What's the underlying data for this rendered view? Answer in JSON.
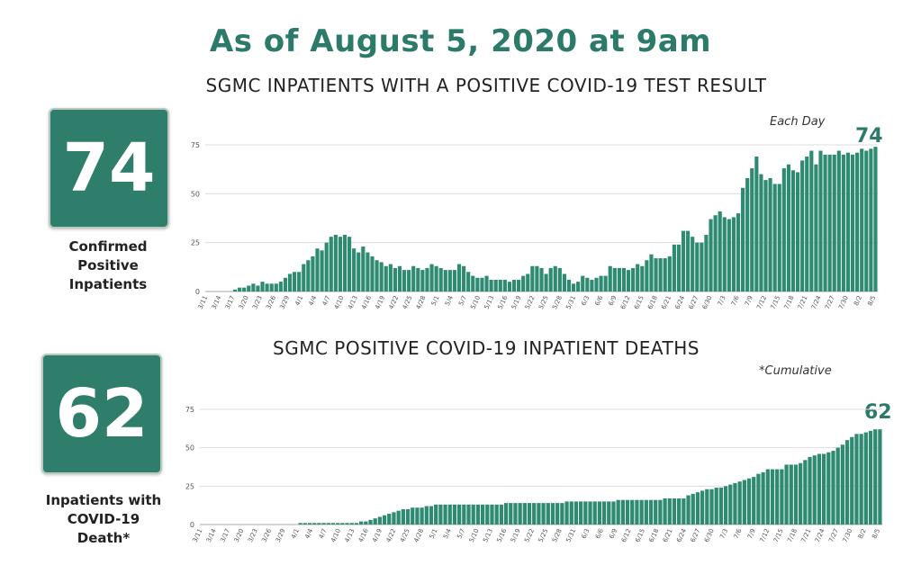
{
  "headline": "As of August 5, 2020 at 9am",
  "colors": {
    "accent": "#2f7e6c",
    "bar": "#2e8b72",
    "grid": "#dddddd"
  },
  "kpis": [
    {
      "value": "74",
      "caption_lines": [
        "Confirmed",
        "Positive",
        "Inpatients"
      ]
    },
    {
      "value": "62",
      "caption_lines": [
        "Inpatients with",
        "COVID-19",
        "Death*"
      ]
    }
  ],
  "chart_data": [
    {
      "type": "bar",
      "title": "SGMC INPATIENTS WITH A POSITIVE COVID-19 TEST RESULT",
      "annotation": "Each Day",
      "last_label": "74",
      "ylim": [
        0,
        75
      ],
      "yticks": [
        0,
        25,
        50,
        75
      ],
      "xtick_labels": [
        "3/11",
        "3/14",
        "3/17",
        "3/20",
        "3/23",
        "3/26",
        "3/29",
        "4/1",
        "4/4",
        "4/7",
        "4/10",
        "4/13",
        "4/16",
        "4/19",
        "4/22",
        "4/25",
        "4/28",
        "5/1",
        "5/4",
        "5/7",
        "5/10",
        "5/13",
        "5/16",
        "5/19",
        "5/22",
        "5/25",
        "5/28",
        "5/31",
        "6/3",
        "6/6",
        "6/9",
        "6/12",
        "6/15",
        "6/18",
        "6/21",
        "6/24",
        "6/27",
        "6/30",
        "7/3",
        "7/6",
        "7/9",
        "7/12",
        "7/15",
        "7/18",
        "7/21",
        "7/24",
        "7/27",
        "7/30",
        "8/2",
        "8/5"
      ],
      "values": [
        0,
        0,
        0,
        0,
        0,
        0,
        1,
        2,
        2,
        3,
        4,
        3,
        5,
        4,
        4,
        4,
        5,
        7,
        9,
        10,
        10,
        14,
        16,
        18,
        22,
        21,
        25,
        28,
        29,
        28,
        29,
        28,
        22,
        20,
        23,
        20,
        18,
        16,
        15,
        13,
        14,
        12,
        13,
        11,
        11,
        13,
        12,
        11,
        12,
        14,
        13,
        12,
        11,
        11,
        11,
        14,
        13,
        10,
        8,
        7,
        7,
        8,
        6,
        6,
        6,
        6,
        5,
        6,
        6,
        8,
        9,
        13,
        13,
        12,
        9,
        12,
        13,
        12,
        9,
        6,
        4,
        5,
        8,
        7,
        6,
        7,
        8,
        8,
        13,
        12,
        12,
        12,
        11,
        12,
        14,
        13,
        16,
        19,
        17,
        17,
        17,
        18,
        24,
        24,
        31,
        31,
        28,
        25,
        25,
        29,
        37,
        39,
        41,
        38,
        37,
        38,
        40,
        53,
        58,
        63,
        69,
        60,
        57,
        58,
        55,
        55,
        63,
        65,
        62,
        61,
        67,
        69,
        72,
        65,
        72,
        70,
        70,
        70,
        72,
        70,
        71,
        70,
        71,
        73,
        72,
        73,
        74
      ]
    },
    {
      "type": "bar",
      "title": "SGMC POSITIVE COVID-19 INPATIENT DEATHS",
      "annotation": "*Cumulative",
      "last_label": "62",
      "ylim": [
        0,
        75
      ],
      "yticks": [
        0,
        25,
        50,
        75
      ],
      "xtick_labels": [
        "3/11",
        "3/14",
        "3/17",
        "3/20",
        "3/23",
        "3/26",
        "3/29",
        "4/1",
        "4/4",
        "4/7",
        "4/10",
        "4/13",
        "4/16",
        "4/19",
        "4/22",
        "4/25",
        "4/28",
        "5/1",
        "5/4",
        "5/7",
        "5/10",
        "5/13",
        "5/16",
        "5/19",
        "5/22",
        "5/25",
        "5/28",
        "5/31",
        "6/3",
        "6/6",
        "6/9",
        "6/12",
        "6/15",
        "6/18",
        "6/21",
        "6/24",
        "6/27",
        "6/30",
        "7/3",
        "7/6",
        "7/9",
        "7/12",
        "7/15",
        "7/18",
        "7/21",
        "7/24",
        "7/27",
        "7/30",
        "8/2",
        "8/5"
      ],
      "values": [
        0,
        0,
        0,
        0,
        0,
        0,
        0,
        0,
        0,
        0,
        0,
        0,
        0,
        0,
        0,
        0,
        0,
        0,
        0,
        0,
        0,
        1,
        1,
        1,
        1,
        1,
        1,
        1,
        1,
        1,
        1,
        1,
        1,
        1,
        2,
        2,
        3,
        4,
        5,
        6,
        7,
        8,
        9,
        10,
        10,
        11,
        11,
        11,
        12,
        12,
        13,
        13,
        13,
        13,
        13,
        13,
        13,
        13,
        13,
        13,
        13,
        13,
        13,
        13,
        13,
        14,
        14,
        14,
        14,
        14,
        14,
        14,
        14,
        14,
        14,
        14,
        14,
        14,
        15,
        15,
        15,
        15,
        15,
        15,
        15,
        15,
        15,
        15,
        15,
        16,
        16,
        16,
        16,
        16,
        16,
        16,
        16,
        16,
        16,
        17,
        17,
        17,
        17,
        17,
        19,
        20,
        21,
        22,
        23,
        23,
        24,
        24,
        25,
        26,
        27,
        28,
        29,
        30,
        31,
        33,
        34,
        36,
        36,
        36,
        36,
        39,
        39,
        39,
        40,
        42,
        44,
        45,
        46,
        46,
        47,
        48,
        50,
        52,
        55,
        57,
        59,
        59,
        60,
        61,
        62,
        62
      ]
    }
  ]
}
